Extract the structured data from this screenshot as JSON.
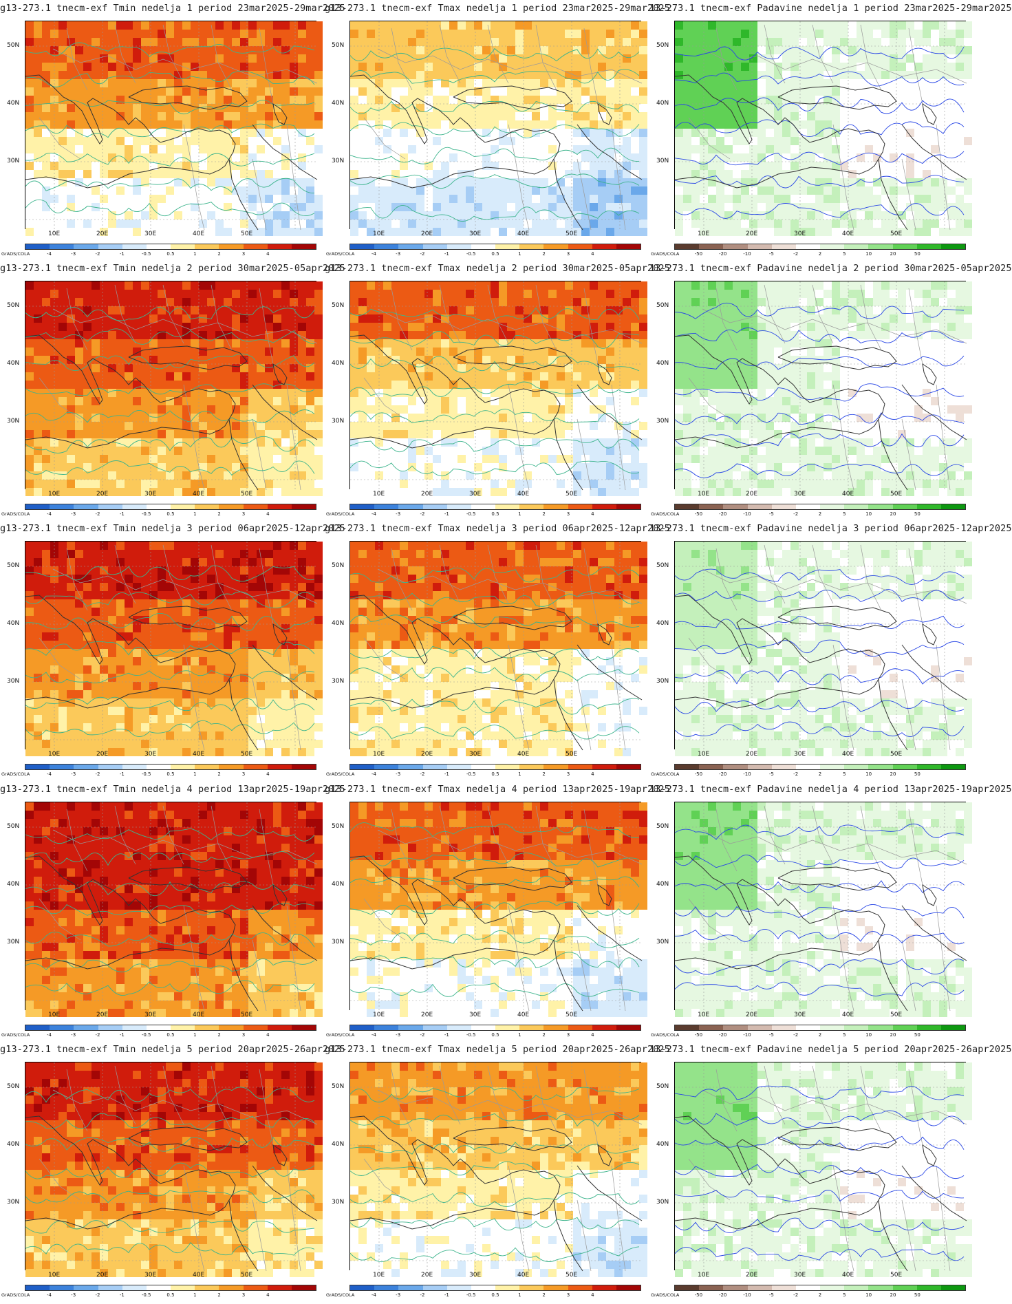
{
  "brand_label": "GrADS/COLA",
  "axes": {
    "lat_labels": [
      "50N",
      "40N",
      "30N"
    ],
    "lon_labels": [
      "10E",
      "20E",
      "30E",
      "40E",
      "50E"
    ]
  },
  "temp_legend": {
    "colors": [
      "#1f5fc8",
      "#3c82dc",
      "#6aa8ea",
      "#a6cdf5",
      "#d8ebfb",
      "#ffffff",
      "#fff2a8",
      "#fbc95a",
      "#f59a26",
      "#ec5a14",
      "#d01c0c",
      "#a30606"
    ],
    "labels": [
      "-4",
      "-3",
      "-2",
      "-1",
      "-0.5",
      "0.5",
      "1",
      "2",
      "3",
      "4"
    ]
  },
  "precip_legend": {
    "colors": [
      "#5a3b2e",
      "#8a6252",
      "#b08e80",
      "#d3baaf",
      "#eedfd7",
      "#ffffff",
      "#e6f8e1",
      "#c4f0bb",
      "#94e38a",
      "#60d155",
      "#2fb82a",
      "#0d9810"
    ],
    "labels": [
      "-50",
      "-20",
      "-10",
      "-5",
      "-2",
      "2",
      "5",
      "10",
      "20",
      "50"
    ]
  },
  "colors": {
    "contour_temp": "#3cb48c",
    "contour_precip": "#2846e6",
    "coast": "#333333",
    "border": "#9a9a9a"
  },
  "panels": [
    {
      "title": "g13-273.1 tnecm-exf Tmin nedelja 1 period 23mar2025-29mar2025",
      "variable": "Tmin",
      "fields": [
        3,
        2,
        0,
        -1
      ]
    },
    {
      "title": "g13-273.1 tnecm-exf Tmax nedelja 1 period 23mar2025-29mar2025",
      "variable": "Tmax",
      "fields": [
        1,
        0,
        -1,
        -2
      ]
    },
    {
      "title": "13-273.1 tnecm-exf Padavine nedelja 1 period 23mar2025-29mar2025",
      "variable": "Padavine",
      "fields": [
        3,
        1,
        -1,
        -2
      ]
    },
    {
      "title": "g13-273.1 tnecm-exf Tmin nedelja 2 period 30mar2025-05apr2025",
      "variable": "Tmin",
      "fields": [
        4,
        3,
        2,
        1
      ]
    },
    {
      "title": "g13-273.1 tnecm-exf Tmax nedelja 2 period 30mar2025-05apr2025",
      "variable": "Tmax",
      "fields": [
        3,
        1,
        0,
        -1
      ]
    },
    {
      "title": "13-273.1 tnecm-exf Padavine nedelja 2 period 30mar2025-05apr2025",
      "variable": "Padavine",
      "fields": [
        2,
        0,
        -1,
        -2
      ]
    },
    {
      "title": "g13-273.1 tnecm-exf Tmin nedelja 3 period 06apr2025-12apr2025",
      "variable": "Tmin",
      "fields": [
        4,
        3,
        2,
        1
      ]
    },
    {
      "title": "g13-273.1 tnecm-exf Tmax nedelja 3 period 06apr2025-12apr2025",
      "variable": "Tmax",
      "fields": [
        3,
        2,
        0,
        0
      ]
    },
    {
      "title": "13-273.1 tnecm-exf Padavine nedelja 3 period 06apr2025-12apr2025",
      "variable": "Padavine",
      "fields": [
        1,
        0,
        -1,
        1
      ]
    },
    {
      "title": "g13-273.1 tnecm-exf Tmin nedelja 4 period 13apr2025-19apr2025",
      "variable": "Tmin",
      "fields": [
        4,
        4,
        3,
        2
      ]
    },
    {
      "title": "g13-273.1 tnecm-exf Tmax nedelja 4 period 13apr2025-19apr2025",
      "variable": "Tmax",
      "fields": [
        3,
        2,
        0,
        -1
      ]
    },
    {
      "title": "13-273.1 tnecm-exf Padavine nedelja 4 period 13apr2025-19apr2025",
      "variable": "Padavine",
      "fields": [
        2,
        0,
        -1,
        1
      ]
    },
    {
      "title": "g13-273.1 tnecm-exf Tmin nedelja 5 period 20apr2025-26apr2025",
      "variable": "Tmin",
      "fields": [
        4,
        3,
        2,
        1
      ]
    },
    {
      "title": "g13-273.1 tnecm-exf Tmax nedelja 5 period 20apr2025-26apr2025",
      "variable": "Tmax",
      "fields": [
        2,
        1,
        0,
        -1
      ]
    },
    {
      "title": "13-273.1 tnecm-exf Padavine nedelja 5 period 20apr2025-26apr2025",
      "variable": "Padavine",
      "fields": [
        2,
        0,
        -1,
        1
      ]
    }
  ]
}
